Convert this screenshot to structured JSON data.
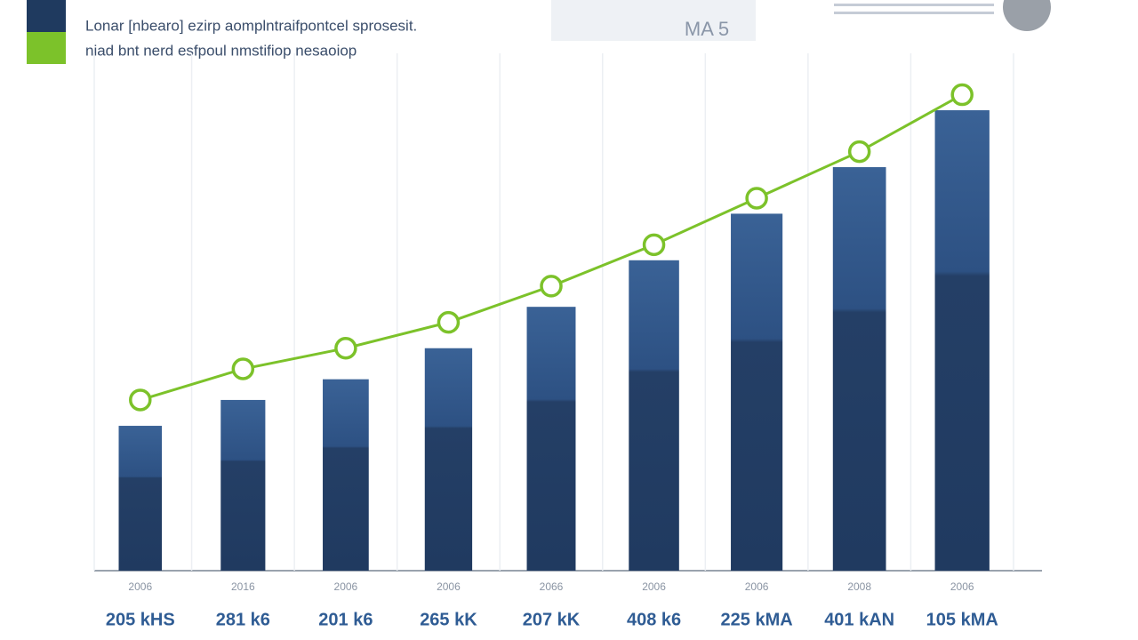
{
  "chart_data": {
    "type": "bar_line",
    "subtitle_lines": [
      "Lonar [nbearo] ezirp aomplntraifpontcel sprosesit.",
      "niad bnt nerd esfpoul nmstifiop nesaoiop"
    ],
    "badge": "MA 5",
    "categories": [
      "2006",
      "2016",
      "2006",
      "2006",
      "2066",
      "2006",
      "2006",
      "2008",
      "2006"
    ],
    "period_labels": [
      "205 kHS",
      "281 k6",
      "201 k6",
      "265 kK",
      "207 kK",
      "408 k6",
      "225 kMA",
      "401 kAN",
      "105 kMA"
    ],
    "series": [
      {
        "kind": "bar",
        "color": "#2a4a75",
        "values": [
          28,
          33,
          37,
          43,
          51,
          60,
          69,
          78,
          89
        ]
      },
      {
        "kind": "line",
        "color": "#7cc22a",
        "values": [
          33,
          39,
          43,
          48,
          55,
          63,
          72,
          81,
          92
        ]
      }
    ],
    "ylim": [
      0,
      100
    ]
  }
}
